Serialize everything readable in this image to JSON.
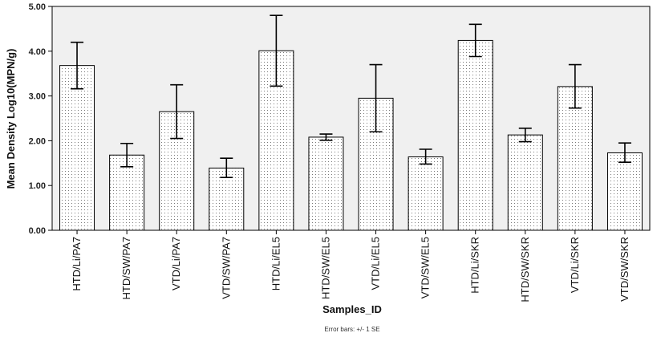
{
  "chart_data": {
    "type": "bar",
    "xlabel": "Samples_ID",
    "ylabel": "Mean Density Log10(MPN/g)",
    "note": "Error bars: +/- 1 SE",
    "ylim": [
      0,
      5
    ],
    "yticks": [
      "0.00",
      "1.00",
      "2.00",
      "3.00",
      "4.00",
      "5.00"
    ],
    "categories": [
      "HTD/Li/PA7",
      "HTD/SW/PA7",
      "VTD/Li/PA7",
      "VTD/SW/PA7",
      "HTD/Li/EL5",
      "HTD/SW/EL5",
      "VTD/Li/EL5",
      "VTD/SW/EL5",
      "HTD/Li/SKR",
      "HTD/SW/SKR",
      "VTD/Li/SKR",
      "VTD/SW/SKR"
    ],
    "values": [
      3.68,
      1.68,
      2.65,
      1.39,
      4.01,
      2.08,
      2.95,
      1.64,
      4.24,
      2.13,
      3.21,
      1.73
    ],
    "error_low": [
      3.16,
      1.42,
      2.05,
      1.18,
      3.22,
      2.01,
      2.2,
      1.48,
      3.88,
      1.98,
      2.73,
      1.52
    ],
    "error_high": [
      4.2,
      1.94,
      3.25,
      1.61,
      4.8,
      2.15,
      3.7,
      1.81,
      4.6,
      2.28,
      3.7,
      1.95
    ],
    "grid": false,
    "colors": {
      "plot_bg": "#f0f0f0",
      "bar_fill": "#ffffff",
      "bar_stroke": "#000000",
      "dots": "#777777"
    }
  }
}
